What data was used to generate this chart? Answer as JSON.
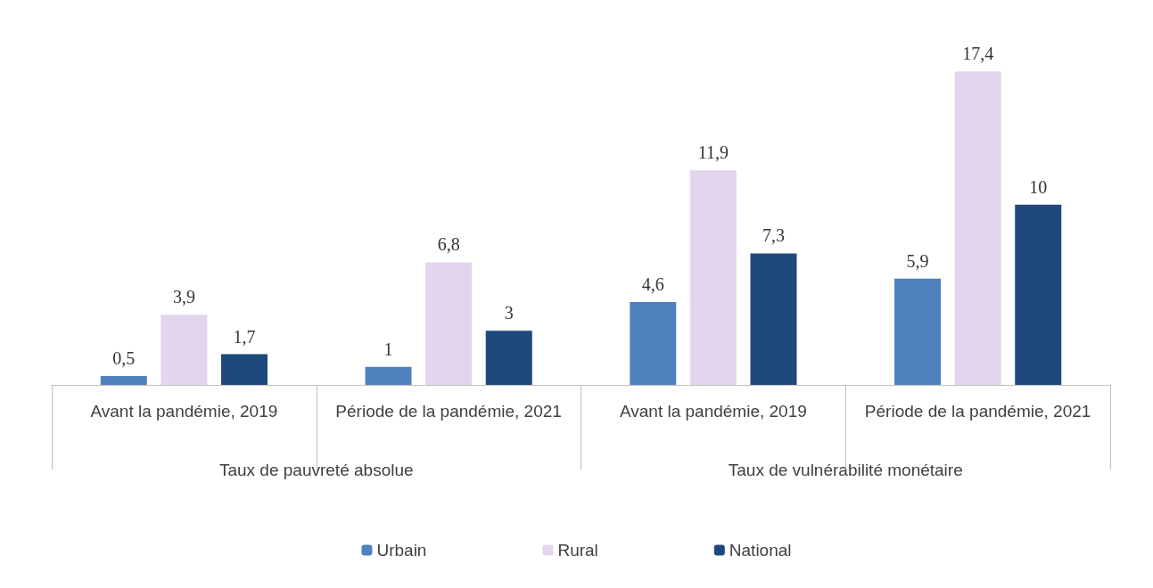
{
  "chart_data": {
    "type": "bar",
    "categories": [
      "Avant la pandémie, 2019",
      "Période de la pandémie, 2021",
      "Avant la pandémie, 2019",
      "Période de la pandémie, 2021"
    ],
    "annotations": [
      "Taux de pauvreté absolue",
      "Taux de vulnérabilité monétaire"
    ],
    "series": [
      {
        "name": "Urbain",
        "color": "#4f81bd",
        "values": [
          0.5,
          1,
          4.6,
          5.9
        ],
        "value_labels": [
          "0,5",
          "1",
          "4,6",
          "5,9"
        ]
      },
      {
        "name": "Rural",
        "color": "#e4d5ee",
        "values": [
          3.9,
          6.8,
          11.9,
          17.4
        ],
        "value_labels": [
          "3,9",
          "6,8",
          "11,9",
          "17,4"
        ]
      },
      {
        "name": "National",
        "color": "#1f497d",
        "values": [
          1.7,
          3,
          7.3,
          10
        ],
        "value_labels": [
          "1,7",
          "3",
          "7,3",
          "10"
        ]
      }
    ],
    "legend": "bottom"
  }
}
